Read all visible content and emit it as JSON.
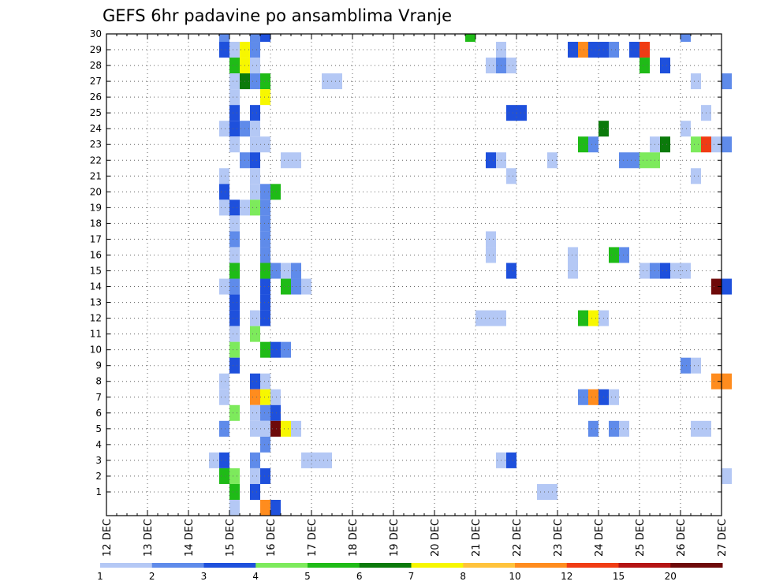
{
  "chart_data": {
    "type": "heatmap",
    "title": "GEFS 6hr padavine po ansamblima Vranje",
    "xlabel": "",
    "ylabel": "",
    "x_tick_labels": [
      "12 DEC",
      "13 DEC",
      "14 DEC",
      "15 DEC",
      "16 DEC",
      "17 DEC",
      "18 DEC",
      "19 DEC",
      "20 DEC",
      "21 DEC",
      "22 DEC",
      "23 DEC",
      "24 DEC",
      "25 DEC",
      "26 DEC",
      "27 DEC"
    ],
    "y_tick_labels": [
      "1",
      "2",
      "3",
      "4",
      "5",
      "6",
      "7",
      "8",
      "9",
      "10",
      "11",
      "12",
      "13",
      "14",
      "15",
      "16",
      "17",
      "18",
      "19",
      "20",
      "21",
      "22",
      "23",
      "24",
      "25",
      "26",
      "27",
      "28",
      "29",
      "30"
    ],
    "x_axis": "time step (6-hourly, 0 = 12 DEC 00Z, 4 steps per day)",
    "y_axis": "ensemble member",
    "grid": true,
    "colorbar": {
      "labels": [
        "1",
        "2",
        "3",
        "4",
        "5",
        "6",
        "7",
        "8",
        "10",
        "12",
        "15",
        "20"
      ],
      "colors": [
        "#b4c8f5",
        "#5f8bea",
        "#1e50dc",
        "#7dea5c",
        "#1fbb17",
        "#0b7a0b",
        "#f7f700",
        "#ffc33c",
        "#ff8c1e",
        "#f03c14",
        "#b41414",
        "#6e0a0a"
      ]
    },
    "cells": [
      [
        11,
        30,
        2
      ],
      [
        14,
        30,
        2
      ],
      [
        15,
        30,
        3
      ],
      [
        35,
        30,
        5
      ],
      [
        56,
        30,
        2
      ],
      [
        11,
        29,
        3
      ],
      [
        12,
        29,
        1
      ],
      [
        13,
        29,
        7
      ],
      [
        14,
        29,
        2
      ],
      [
        38,
        29,
        1
      ],
      [
        45,
        29,
        3
      ],
      [
        46,
        29,
        9
      ],
      [
        47,
        29,
        3
      ],
      [
        48,
        29,
        3
      ],
      [
        49,
        29,
        2
      ],
      [
        51,
        29,
        3
      ],
      [
        52,
        29,
        10
      ],
      [
        12,
        28,
        5
      ],
      [
        13,
        28,
        7
      ],
      [
        14,
        28,
        1
      ],
      [
        37,
        28,
        1
      ],
      [
        38,
        28,
        2
      ],
      [
        39,
        28,
        1
      ],
      [
        52,
        28,
        5
      ],
      [
        54,
        28,
        3
      ],
      [
        12,
        27,
        1
      ],
      [
        13,
        27,
        6
      ],
      [
        14,
        27,
        2
      ],
      [
        15,
        27,
        5
      ],
      [
        21,
        27,
        1
      ],
      [
        22,
        27,
        1
      ],
      [
        57,
        27,
        1
      ],
      [
        60,
        27,
        2
      ],
      [
        12,
        26,
        1
      ],
      [
        15,
        26,
        7
      ],
      [
        12,
        25,
        3
      ],
      [
        14,
        25,
        3
      ],
      [
        39,
        25,
        3
      ],
      [
        40,
        25,
        3
      ],
      [
        58,
        25,
        1
      ],
      [
        11,
        24,
        1
      ],
      [
        12,
        24,
        3
      ],
      [
        13,
        24,
        2
      ],
      [
        14,
        24,
        1
      ],
      [
        48,
        24,
        6
      ],
      [
        56,
        24,
        1
      ],
      [
        12,
        23,
        1
      ],
      [
        14,
        23,
        1
      ],
      [
        15,
        23,
        1
      ],
      [
        46,
        23,
        5
      ],
      [
        47,
        23,
        2
      ],
      [
        53,
        23,
        1
      ],
      [
        54,
        23,
        6
      ],
      [
        57,
        23,
        4
      ],
      [
        58,
        23,
        10
      ],
      [
        59,
        23,
        1
      ],
      [
        60,
        23,
        2
      ],
      [
        13,
        22,
        2
      ],
      [
        14,
        22,
        3
      ],
      [
        17,
        22,
        1
      ],
      [
        18,
        22,
        1
      ],
      [
        37,
        22,
        3
      ],
      [
        38,
        22,
        1
      ],
      [
        43,
        22,
        1
      ],
      [
        50,
        22,
        2
      ],
      [
        51,
        22,
        2
      ],
      [
        52,
        22,
        4
      ],
      [
        53,
        22,
        4
      ],
      [
        11,
        21,
        1
      ],
      [
        14,
        21,
        1
      ],
      [
        39,
        21,
        1
      ],
      [
        57,
        21,
        1
      ],
      [
        11,
        20,
        3
      ],
      [
        14,
        20,
        1
      ],
      [
        15,
        20,
        2
      ],
      [
        16,
        20,
        5
      ],
      [
        11,
        19,
        1
      ],
      [
        12,
        19,
        3
      ],
      [
        13,
        19,
        1
      ],
      [
        14,
        19,
        4
      ],
      [
        15,
        19,
        2
      ],
      [
        12,
        18,
        1
      ],
      [
        15,
        18,
        2
      ],
      [
        12,
        17,
        2
      ],
      [
        15,
        17,
        2
      ],
      [
        37,
        17,
        1
      ],
      [
        12,
        16,
        1
      ],
      [
        15,
        16,
        2
      ],
      [
        37,
        16,
        1
      ],
      [
        45,
        16,
        1
      ],
      [
        49,
        16,
        5
      ],
      [
        50,
        16,
        2
      ],
      [
        12,
        15,
        5
      ],
      [
        15,
        15,
        5
      ],
      [
        16,
        15,
        2
      ],
      [
        17,
        15,
        1
      ],
      [
        18,
        15,
        2
      ],
      [
        39,
        15,
        3
      ],
      [
        45,
        15,
        1
      ],
      [
        52,
        15,
        1
      ],
      [
        53,
        15,
        2
      ],
      [
        54,
        15,
        3
      ],
      [
        55,
        15,
        1
      ],
      [
        56,
        15,
        1
      ],
      [
        11,
        14,
        1
      ],
      [
        12,
        14,
        2
      ],
      [
        15,
        14,
        3
      ],
      [
        17,
        14,
        5
      ],
      [
        18,
        14,
        2
      ],
      [
        19,
        14,
        1
      ],
      [
        59,
        14,
        12
      ],
      [
        60,
        14,
        3
      ],
      [
        12,
        13,
        3
      ],
      [
        15,
        13,
        3
      ],
      [
        12,
        12,
        3
      ],
      [
        14,
        12,
        1
      ],
      [
        15,
        12,
        3
      ],
      [
        36,
        12,
        1
      ],
      [
        37,
        12,
        1
      ],
      [
        38,
        12,
        1
      ],
      [
        46,
        12,
        5
      ],
      [
        47,
        12,
        7
      ],
      [
        48,
        12,
        1
      ],
      [
        12,
        11,
        1
      ],
      [
        14,
        11,
        4
      ],
      [
        12,
        10,
        4
      ],
      [
        15,
        10,
        5
      ],
      [
        16,
        10,
        3
      ],
      [
        17,
        10,
        2
      ],
      [
        12,
        9,
        3
      ],
      [
        56,
        9,
        2
      ],
      [
        57,
        9,
        1
      ],
      [
        11,
        8,
        1
      ],
      [
        14,
        8,
        3
      ],
      [
        15,
        8,
        1
      ],
      [
        59,
        8,
        9
      ],
      [
        60,
        8,
        9
      ],
      [
        11,
        7,
        1
      ],
      [
        14,
        7,
        9
      ],
      [
        15,
        7,
        7
      ],
      [
        16,
        7,
        1
      ],
      [
        46,
        7,
        2
      ],
      [
        47,
        7,
        9
      ],
      [
        48,
        7,
        3
      ],
      [
        49,
        7,
        1
      ],
      [
        12,
        6,
        4
      ],
      [
        14,
        6,
        1
      ],
      [
        15,
        6,
        2
      ],
      [
        16,
        6,
        3
      ],
      [
        11,
        5,
        2
      ],
      [
        14,
        5,
        1
      ],
      [
        15,
        5,
        1
      ],
      [
        16,
        5,
        12
      ],
      [
        17,
        5,
        7
      ],
      [
        18,
        5,
        1
      ],
      [
        47,
        5,
        2
      ],
      [
        49,
        5,
        2
      ],
      [
        50,
        5,
        1
      ],
      [
        57,
        5,
        1
      ],
      [
        58,
        5,
        1
      ],
      [
        15,
        4,
        2
      ],
      [
        10,
        3,
        1
      ],
      [
        11,
        3,
        3
      ],
      [
        14,
        3,
        2
      ],
      [
        19,
        3,
        1
      ],
      [
        20,
        3,
        1
      ],
      [
        21,
        3,
        1
      ],
      [
        38,
        3,
        1
      ],
      [
        39,
        3,
        3
      ],
      [
        11,
        2,
        5
      ],
      [
        12,
        2,
        4
      ],
      [
        14,
        2,
        1
      ],
      [
        15,
        2,
        3
      ],
      [
        60,
        2,
        1
      ],
      [
        12,
        1,
        5
      ],
      [
        14,
        1,
        3
      ],
      [
        42,
        1,
        1
      ],
      [
        43,
        1,
        1
      ],
      [
        12,
        0,
        1
      ],
      [
        15,
        0,
        9
      ],
      [
        16,
        0,
        3
      ]
    ]
  }
}
